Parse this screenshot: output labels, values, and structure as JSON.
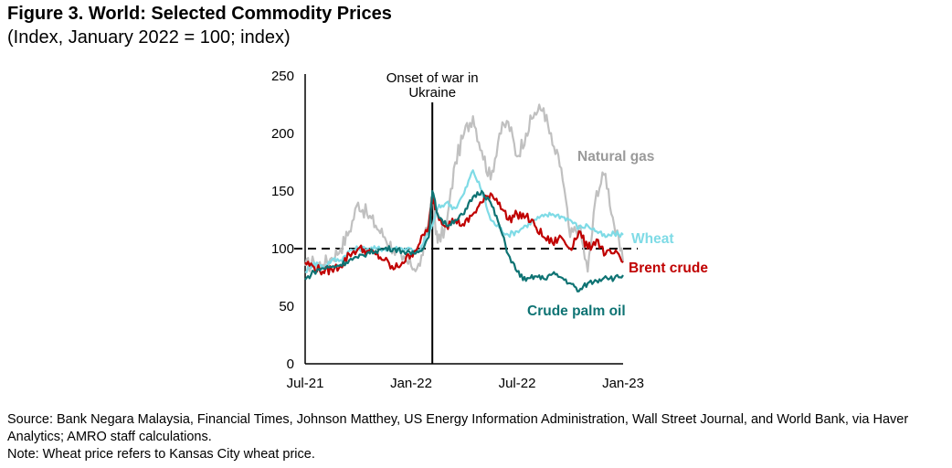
{
  "header": {
    "title": "Figure 3. World: Selected Commodity Prices",
    "subtitle": "(Index, January 2022 = 100; index)"
  },
  "footer": {
    "source": "Source: Bank Negara Malaysia, Financial Times, Johnson Matthey, US Energy Information Administration, Wall Street Journal, and World Bank, via Haver Analytics; AMRO staff calculations.",
    "note": "Note: Wheat price refers to Kansas City wheat price."
  },
  "chart_data": {
    "type": "line",
    "title": "Figure 3. World: Selected Commodity Prices",
    "subtitle": "(Index, January 2022 = 100; index)",
    "xlabel": "",
    "ylabel": "",
    "x_unit": "months since Jul-2021",
    "xlim": [
      0,
      18
    ],
    "ylim": [
      0,
      250
    ],
    "yticks": [
      0,
      50,
      100,
      150,
      200,
      250
    ],
    "xticks": [
      {
        "t": 0,
        "label": "Jul-21"
      },
      {
        "t": 6,
        "label": "Jan-22"
      },
      {
        "t": 12,
        "label": "Jul-22"
      },
      {
        "t": 18,
        "label": "Jan-23"
      }
    ],
    "grid": false,
    "reference_line": {
      "value": 100,
      "style": "dashed"
    },
    "annotation": {
      "t": 7.2,
      "label_line1": "Onset of war in",
      "label_line2": "Ukraine"
    },
    "x": [
      0,
      0.5,
      1,
      1.5,
      2,
      2.5,
      3,
      3.5,
      4,
      4.5,
      5,
      5.5,
      6,
      6.5,
      7,
      7.2,
      7.5,
      8,
      8.5,
      9,
      9.5,
      10,
      10.5,
      11,
      11.5,
      12,
      12.5,
      13,
      13.5,
      14,
      14.5,
      15,
      15.5,
      16,
      16.5,
      17,
      17.5,
      18
    ],
    "series": [
      {
        "name": "Natural gas",
        "color": "#c0c0c0",
        "label_position": "upper-right",
        "values": [
          85,
          88,
          86,
          92,
          100,
          115,
          140,
          130,
          120,
          110,
          100,
          90,
          85,
          85,
          125,
          145,
          105,
          120,
          175,
          200,
          215,
          185,
          160,
          200,
          210,
          180,
          200,
          218,
          222,
          190,
          170,
          110,
          120,
          80,
          150,
          165,
          120,
          88
        ]
      },
      {
        "name": "Wheat",
        "color": "#7fdbe6",
        "label_position": "right",
        "values": [
          80,
          88,
          84,
          90,
          90,
          98,
          100,
          100,
          100,
          100,
          100,
          100,
          100,
          98,
          115,
          120,
          135,
          140,
          135,
          148,
          168,
          150,
          125,
          118,
          112,
          115,
          120,
          125,
          128,
          130,
          128,
          125,
          118,
          120,
          115,
          110,
          113,
          112
        ]
      },
      {
        "name": "Brent crude",
        "color": "#c00000",
        "label_position": "right",
        "values": [
          88,
          84,
          80,
          82,
          85,
          95,
          100,
          98,
          95,
          90,
          82,
          88,
          95,
          105,
          120,
          145,
          130,
          120,
          125,
          120,
          130,
          140,
          148,
          140,
          125,
          130,
          128,
          120,
          110,
          105,
          110,
          100,
          115,
          100,
          108,
          95,
          96,
          88
        ]
      },
      {
        "name": "Crude palm oil",
        "color": "#0e7373",
        "label_position": "lower-right",
        "values": [
          73,
          80,
          83,
          84,
          86,
          90,
          92,
          96,
          98,
          100,
          100,
          98,
          95,
          98,
          110,
          150,
          130,
          120,
          125,
          130,
          145,
          150,
          140,
          120,
          95,
          80,
          72,
          76,
          74,
          78,
          75,
          70,
          63,
          70,
          72,
          76,
          74,
          77
        ]
      }
    ]
  }
}
